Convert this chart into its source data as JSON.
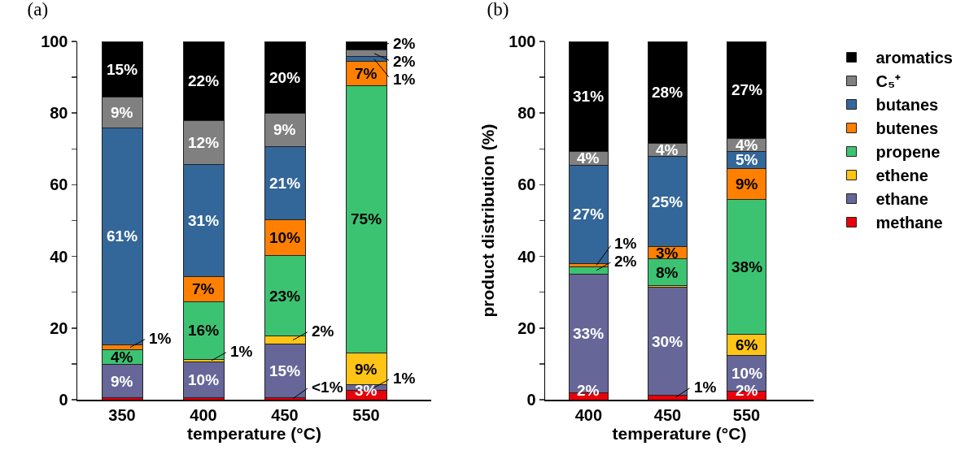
{
  "chart_data": [
    {
      "type": "bar",
      "title": "(a)",
      "xlabel": "temperature (°C)",
      "categories": [
        "350",
        "400",
        "450",
        "550"
      ],
      "stacked": true,
      "legend": false,
      "ylim": [
        0,
        100
      ],
      "yticks": [
        0,
        {
          "value": 10,
          "label": null
        },
        20,
        {
          "value": 30,
          "label": null
        },
        40,
        {
          "value": 50,
          "label": null
        },
        60,
        {
          "value": 70,
          "label": null
        },
        80,
        {
          "value": 90,
          "label": null
        },
        100
      ],
      "series": [
        {
          "color": "#e8000b",
          "values": [
            0.5,
            0.5,
            0.6,
            2.7
          ],
          "value_labels": [
            null,
            null,
            "<1%",
            "3%"
          ]
        },
        {
          "color": "#666699",
          "values": [
            9.4,
            10.1,
            15.0,
            1.4
          ],
          "value_labels": [
            "9%",
            "10%",
            "15%",
            "1%"
          ]
        },
        {
          "color": "#ffc416",
          "values": [
            0,
            0.7,
            2.1,
            9.0
          ],
          "value_labels": [
            null,
            "1%",
            "2%",
            "9%"
          ]
        },
        {
          "color": "#3cc372",
          "values": [
            4.0,
            16.1,
            22.6,
            74.5
          ],
          "value_labels": [
            "4%",
            "16%",
            "23%",
            "75%"
          ]
        },
        {
          "color": "#ff8000",
          "values": [
            1.4,
            7.0,
            9.9,
            6.8
          ],
          "value_labels": [
            "1%",
            "7%",
            "10%",
            "7%"
          ]
        },
        {
          "color": "#336699",
          "values": [
            60.6,
            31.3,
            20.5,
            1.3
          ],
          "value_labels": [
            "61%",
            "31%",
            "21%",
            "1%"
          ]
        },
        {
          "color": "#808080",
          "values": [
            8.6,
            12.1,
            9.2,
            1.9
          ],
          "value_labels": [
            "9%",
            "12%",
            "9%",
            "2%"
          ]
        },
        {
          "color": "#000000",
          "values": [
            15.5,
            22.2,
            20.1,
            2.4
          ],
          "value_labels": [
            "15%",
            "22%",
            "20%",
            "2%"
          ]
        }
      ]
    },
    {
      "type": "bar",
      "title": "(b)",
      "xlabel": "temperature (°C)",
      "ylabel": "product distribution (%)",
      "categories": [
        "400",
        "450",
        "550"
      ],
      "stacked": true,
      "legend": "top right",
      "ylim": [
        0,
        100
      ],
      "yticks": [
        0,
        {
          "value": 10,
          "label": null
        },
        20,
        {
          "value": 30,
          "label": null
        },
        40,
        {
          "value": 50,
          "label": null
        },
        60,
        {
          "value": 70,
          "label": null
        },
        80,
        {
          "value": 90,
          "label": null
        },
        100
      ],
      "series": [
        {
          "name": "methane",
          "color": "#e8000b",
          "values": [
            2.0,
            1.3,
            2.4
          ],
          "value_labels": [
            "2%",
            "1%",
            "2%"
          ]
        },
        {
          "name": "ethane",
          "color": "#666699",
          "values": [
            33.1,
            30.0,
            10.0
          ],
          "value_labels": [
            "33%",
            "30%",
            "10%"
          ]
        },
        {
          "name": "ethene",
          "color": "#ffc416",
          "values": [
            0,
            0.5,
            5.9
          ],
          "value_labels": [
            null,
            null,
            "6%"
          ]
        },
        {
          "name": "propene",
          "color": "#3cc372",
          "values": [
            2.0,
            7.5,
            37.6
          ],
          "value_labels": [
            "2%",
            "8%",
            "38%"
          ]
        },
        {
          "name": "butenes",
          "color": "#ff8000",
          "values": [
            0.9,
            3.4,
            8.6
          ],
          "value_labels": [
            "1%",
            "3%",
            "9%"
          ]
        },
        {
          "name": "butanes",
          "color": "#336699",
          "values": [
            27.5,
            25.2,
            4.8
          ],
          "value_labels": [
            "27%",
            "25%",
            "5%"
          ]
        },
        {
          "name": "C₅⁺",
          "color": "#808080",
          "values": [
            3.7,
            3.6,
            3.6
          ],
          "value_labels": [
            "4%",
            "4%",
            "4%"
          ]
        },
        {
          "name": "aromatics",
          "color": "#000000",
          "values": [
            30.8,
            28.5,
            27.1
          ],
          "value_labels": [
            "31%",
            "28%",
            "27%"
          ]
        }
      ]
    }
  ]
}
